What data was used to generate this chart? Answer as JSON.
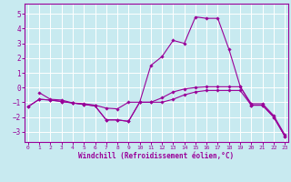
{
  "xlabel": "Windchill (Refroidissement éolien,°C)",
  "bg_color": "#c8eaf0",
  "line_color": "#990099",
  "grid_color": "#ffffff",
  "xlim": [
    -0.3,
    23.3
  ],
  "ylim": [
    -3.7,
    5.7
  ],
  "yticks": [
    -3,
    -2,
    -1,
    0,
    1,
    2,
    3,
    4,
    5
  ],
  "xticks": [
    0,
    1,
    2,
    3,
    4,
    5,
    6,
    7,
    8,
    9,
    10,
    11,
    12,
    13,
    14,
    15,
    16,
    17,
    18,
    19,
    20,
    21,
    22,
    23
  ],
  "lines": [
    {
      "x": [
        1,
        2,
        3,
        4,
        5,
        6,
        7,
        8,
        9,
        10,
        11,
        12,
        13,
        14,
        15,
        16,
        17,
        18,
        19,
        20,
        21,
        22,
        23
      ],
      "y": [
        -0.35,
        -0.8,
        -0.85,
        -1.05,
        -1.15,
        -1.25,
        -2.2,
        -2.2,
        -2.3,
        -1.0,
        -1.0,
        -1.0,
        -0.8,
        -0.5,
        -0.3,
        -0.2,
        -0.2,
        -0.2,
        -0.2,
        -1.2,
        -1.2,
        -2.0,
        -3.3
      ]
    },
    {
      "x": [
        0,
        1,
        2,
        3,
        4,
        5,
        6,
        7,
        8,
        9,
        10,
        11,
        12,
        13,
        14,
        15,
        16,
        17,
        18,
        19,
        20,
        21,
        22,
        23
      ],
      "y": [
        -1.3,
        -0.8,
        -0.85,
        -0.95,
        -1.05,
        -1.1,
        -1.2,
        -1.4,
        -1.45,
        -1.0,
        -1.0,
        -1.0,
        -0.7,
        -0.3,
        -0.1,
        0.0,
        0.05,
        0.05,
        0.05,
        0.05,
        -1.1,
        -1.1,
        -1.9,
        -3.2
      ]
    },
    {
      "x": [
        0,
        1,
        2,
        3,
        4,
        5,
        6,
        7,
        8,
        9,
        10,
        11,
        12,
        13,
        14,
        15,
        16,
        17,
        18,
        19,
        20,
        21,
        22,
        23
      ],
      "y": [
        -1.3,
        -0.8,
        -0.85,
        -0.95,
        -1.05,
        -1.15,
        -1.25,
        -2.2,
        -2.2,
        -2.3,
        -1.0,
        1.5,
        2.1,
        3.2,
        3.0,
        4.8,
        4.7,
        4.7,
        2.6,
        0.1,
        -1.2,
        -1.2,
        -2.0,
        -3.3
      ]
    }
  ]
}
